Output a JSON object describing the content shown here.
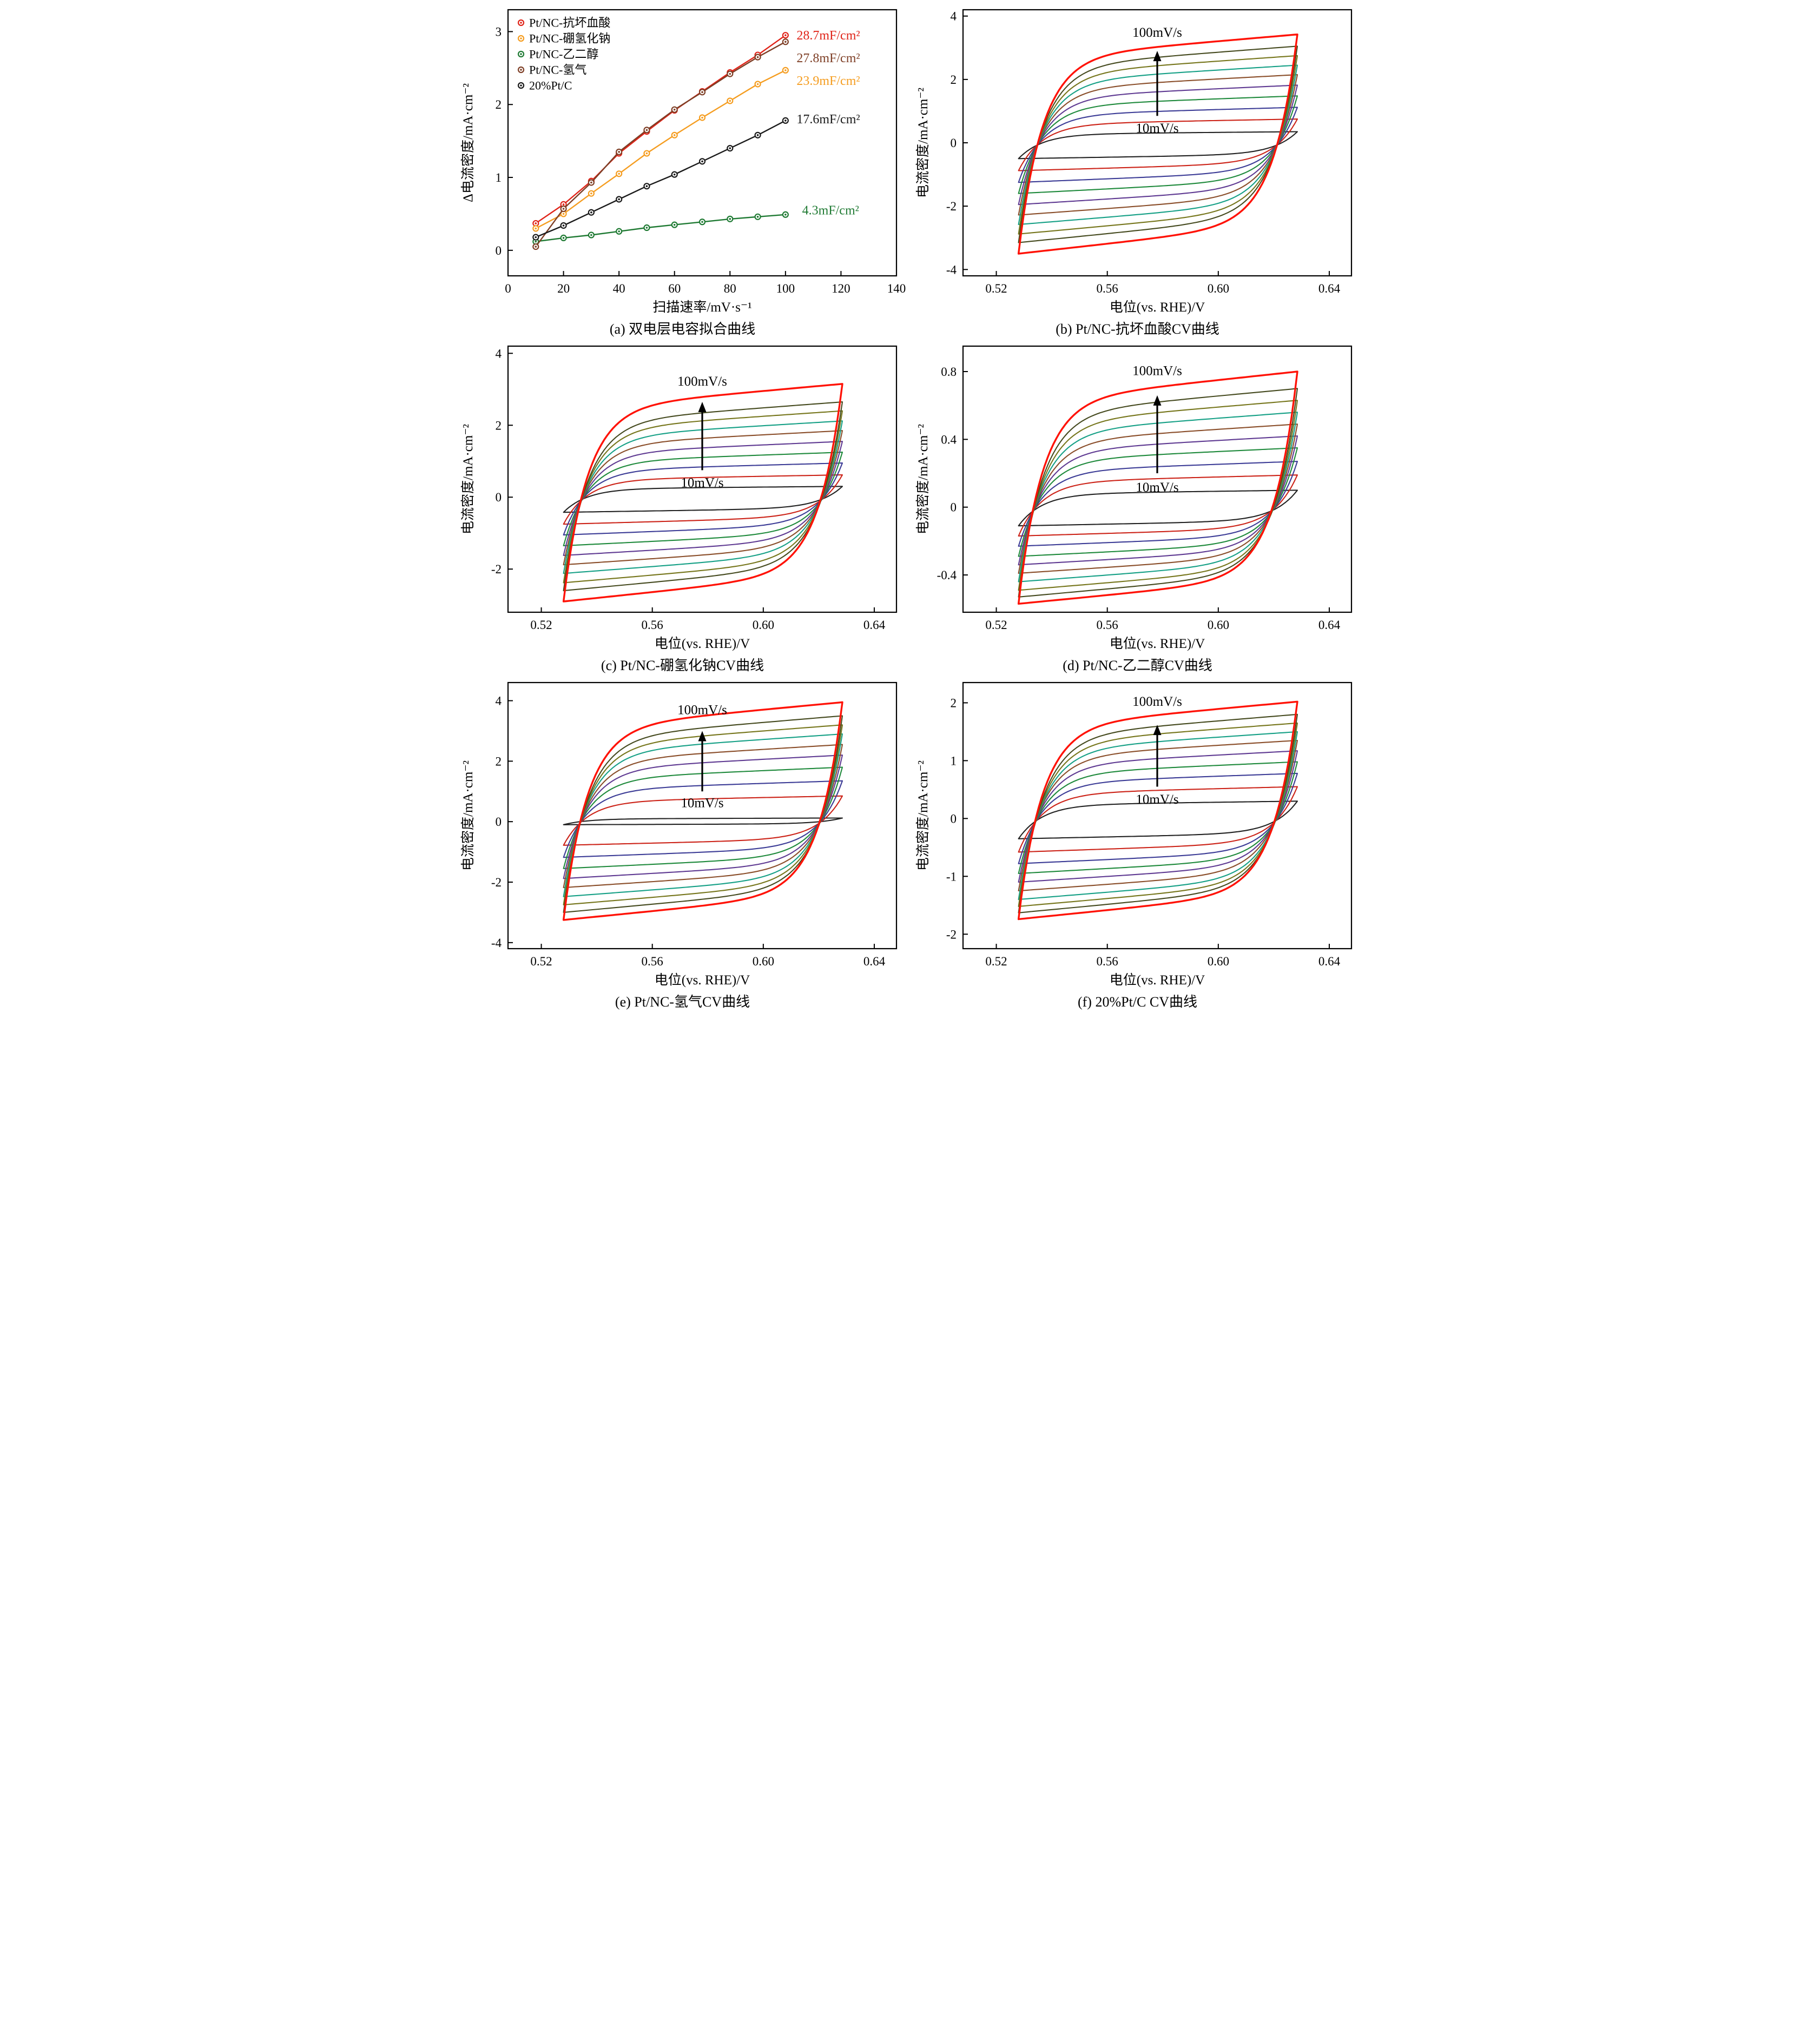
{
  "figure": {
    "background": "#ffffff"
  },
  "cv_colors": [
    "#222222",
    "#cc2318",
    "#3c3c96",
    "#1f8a3c",
    "#5f3a92",
    "#8a4e2a",
    "#16a086",
    "#76761c",
    "#454a1f",
    "#ff1206"
  ],
  "chart_data": [
    {
      "id": "a",
      "type": "scatter-line",
      "title": "(a) 双电层电容拟合曲线",
      "xlabel": "扫描速率/mV·s⁻¹",
      "ylabel": "Δ电流密度/mA·cm⁻²",
      "xlim": [
        0,
        140
      ],
      "ylim": [
        -0.35,
        3.3
      ],
      "xticks": [
        0,
        20,
        40,
        60,
        80,
        100,
        120,
        140
      ],
      "xtick_labels": [
        "0",
        "20",
        "40",
        "60",
        "80",
        "100",
        "120",
        "140"
      ],
      "yticks": [
        0,
        1,
        2,
        3
      ],
      "ytick_labels": [
        "0",
        "1",
        "2",
        "3"
      ],
      "x": [
        10,
        20,
        30,
        40,
        50,
        60,
        70,
        80,
        90,
        100
      ],
      "series": [
        {
          "name": "Pt/NC-抗坏血酸",
          "color": "#e02318",
          "values": [
            0.37,
            0.63,
            0.95,
            1.33,
            1.63,
            1.92,
            2.18,
            2.44,
            2.68,
            2.95
          ],
          "annotation": {
            "text": "28.7mF/cm²",
            "x": 104,
            "y": 2.95
          }
        },
        {
          "name": "Pt/NC-硼氢化钠",
          "color": "#f59d20",
          "values": [
            0.3,
            0.5,
            0.78,
            1.05,
            1.33,
            1.58,
            1.82,
            2.05,
            2.28,
            2.47
          ],
          "annotation": {
            "text": "23.9mF/cm²",
            "x": 104,
            "y": 2.33
          }
        },
        {
          "name": "Pt/NC-乙二醇",
          "color": "#1f7a33",
          "values": [
            0.12,
            0.17,
            0.21,
            0.26,
            0.31,
            0.35,
            0.39,
            0.43,
            0.46,
            0.49
          ],
          "annotation": {
            "text": "4.3mF/cm²",
            "x": 106,
            "y": 0.55
          }
        },
        {
          "name": "Pt/NC-氢气",
          "color": "#7e3f26",
          "values": [
            0.05,
            0.57,
            0.93,
            1.35,
            1.65,
            1.93,
            2.17,
            2.42,
            2.65,
            2.86
          ],
          "annotation": {
            "text": "27.8mF/cm²",
            "x": 104,
            "y": 2.64
          }
        },
        {
          "name": "20%Pt/C",
          "color": "#1a1a1a",
          "values": [
            0.18,
            0.34,
            0.52,
            0.7,
            0.88,
            1.04,
            1.22,
            1.4,
            1.58,
            1.78
          ],
          "annotation": {
            "text": "17.6mF/cm²",
            "x": 104,
            "y": 1.8
          }
        }
      ]
    },
    {
      "id": "b",
      "type": "cv",
      "title": "(b) Pt/NC-抗坏血酸CV曲线",
      "xlabel": "电位(vs. RHE)/V",
      "ylabel": "电流密度/mA·cm⁻²",
      "xlim": [
        0.508,
        0.648
      ],
      "ylim": [
        -4.2,
        4.2
      ],
      "xticks": [
        0.52,
        0.56,
        0.6,
        0.64
      ],
      "xtick_labels": [
        "0.52",
        "0.56",
        "0.60",
        "0.64"
      ],
      "yticks": [
        -4,
        -2,
        0,
        2,
        4
      ],
      "ytick_labels": [
        "-4",
        "-2",
        "0",
        "2",
        "4"
      ],
      "x_start": 0.528,
      "x_end": 0.6285,
      "scan_rates": [
        10,
        20,
        30,
        40,
        50,
        60,
        70,
        80,
        90,
        100
      ],
      "top_amplitudes": [
        0.35,
        0.75,
        1.12,
        1.48,
        1.82,
        2.15,
        2.45,
        2.75,
        3.05,
        3.42
      ],
      "bottom_amplitudes": [
        0.5,
        0.88,
        1.25,
        1.6,
        1.95,
        2.28,
        2.58,
        2.88,
        3.15,
        3.5
      ],
      "arrow": {
        "x": 0.578,
        "y1": 0.85,
        "y2": 2.9,
        "label_top": "100mV/s",
        "label_top_y": 3.35,
        "label_bottom": "10mV/s",
        "label_bottom_y": 0.48
      }
    },
    {
      "id": "c",
      "type": "cv",
      "title": "(c) Pt/NC-硼氢化钠CV曲线",
      "xlabel": "电位(vs. RHE)/V",
      "ylabel": "电流密度/mA·cm⁻²",
      "xlim": [
        0.508,
        0.648
      ],
      "ylim": [
        -3.2,
        4.2
      ],
      "xticks": [
        0.52,
        0.56,
        0.6,
        0.64
      ],
      "xtick_labels": [
        "0.52",
        "0.56",
        "0.60",
        "0.64"
      ],
      "yticks": [
        -2,
        0,
        2,
        4
      ],
      "ytick_labels": [
        "-2",
        "0",
        "2",
        "4"
      ],
      "x_start": 0.528,
      "x_end": 0.6285,
      "scan_rates": [
        10,
        20,
        30,
        40,
        50,
        60,
        70,
        80,
        90,
        100
      ],
      "top_amplitudes": [
        0.3,
        0.62,
        0.95,
        1.25,
        1.55,
        1.85,
        2.12,
        2.4,
        2.65,
        3.15
      ],
      "bottom_amplitudes": [
        0.42,
        0.75,
        1.05,
        1.35,
        1.62,
        1.88,
        2.12,
        2.38,
        2.6,
        2.9
      ],
      "arrow": {
        "x": 0.578,
        "y1": 0.75,
        "y2": 2.65,
        "label_top": "100mV/s",
        "label_top_y": 3.1,
        "label_bottom": "10mV/s",
        "label_bottom_y": 0.42
      }
    },
    {
      "id": "d",
      "type": "cv",
      "title": "(d) Pt/NC-乙二醇CV曲线",
      "xlabel": "电位(vs. RHE)/V",
      "ylabel": "电流密度/mA·cm⁻²",
      "xlim": [
        0.508,
        0.648
      ],
      "ylim": [
        -0.62,
        0.95
      ],
      "xticks": [
        0.52,
        0.56,
        0.6,
        0.64
      ],
      "xtick_labels": [
        "0.52",
        "0.56",
        "0.60",
        "0.64"
      ],
      "yticks": [
        -0.4,
        0,
        0.4,
        0.8
      ],
      "ytick_labels": [
        "-0.4",
        "0",
        "0.4",
        "0.8"
      ],
      "x_start": 0.528,
      "x_end": 0.6285,
      "scan_rates": [
        10,
        20,
        30,
        40,
        50,
        60,
        70,
        80,
        90,
        100
      ],
      "top_amplitudes": [
        0.1,
        0.19,
        0.27,
        0.35,
        0.42,
        0.49,
        0.56,
        0.63,
        0.7,
        0.8
      ],
      "bottom_amplitudes": [
        0.11,
        0.17,
        0.23,
        0.29,
        0.34,
        0.39,
        0.44,
        0.49,
        0.53,
        0.57
      ],
      "arrow": {
        "x": 0.578,
        "y1": 0.2,
        "y2": 0.66,
        "label_top": "100mV/s",
        "label_top_y": 0.78,
        "label_bottom": "10mV/s",
        "label_bottom_y": 0.12
      }
    },
    {
      "id": "e",
      "type": "cv",
      "title": "(e) Pt/NC-氢气CV曲线",
      "xlabel": "电位(vs. RHE)/V",
      "ylabel": "电流密度/mA·cm⁻²",
      "xlim": [
        0.508,
        0.648
      ],
      "ylim": [
        -4.2,
        4.6
      ],
      "xticks": [
        0.52,
        0.56,
        0.6,
        0.64
      ],
      "xtick_labels": [
        "0.52",
        "0.56",
        "0.60",
        "0.64"
      ],
      "yticks": [
        -4,
        -2,
        0,
        2,
        4
      ],
      "ytick_labels": [
        "-4",
        "-2",
        "0",
        "2",
        "4"
      ],
      "x_start": 0.528,
      "x_end": 0.6285,
      "scan_rates": [
        10,
        20,
        30,
        40,
        50,
        60,
        70,
        80,
        90,
        100
      ],
      "top_amplitudes": [
        0.12,
        0.85,
        1.35,
        1.8,
        2.2,
        2.55,
        2.9,
        3.2,
        3.5,
        3.95
      ],
      "bottom_amplitudes": [
        0.1,
        0.78,
        1.18,
        1.55,
        1.88,
        2.18,
        2.48,
        2.75,
        3.0,
        3.25
      ],
      "arrow": {
        "x": 0.578,
        "y1": 1.0,
        "y2": 3.0,
        "label_top": "100mV/s",
        "label_top_y": 3.55,
        "label_bottom": "10mV/s",
        "label_bottom_y": 0.64
      }
    },
    {
      "id": "f",
      "type": "cv",
      "title": "(f) 20%Pt/C CV曲线",
      "xlabel": "电位(vs. RHE)/V",
      "ylabel": "电流密度/mA·cm⁻²",
      "xlim": [
        0.508,
        0.648
      ],
      "ylim": [
        -2.25,
        2.35
      ],
      "xticks": [
        0.52,
        0.56,
        0.6,
        0.64
      ],
      "xtick_labels": [
        "0.52",
        "0.56",
        "0.60",
        "0.64"
      ],
      "yticks": [
        -2,
        -1,
        0,
        1,
        2
      ],
      "ytick_labels": [
        "-2",
        "-1",
        "0",
        "1",
        "2"
      ],
      "x_start": 0.528,
      "x_end": 0.6285,
      "scan_rates": [
        10,
        20,
        30,
        40,
        50,
        60,
        70,
        80,
        90,
        100
      ],
      "top_amplitudes": [
        0.3,
        0.55,
        0.78,
        0.98,
        1.17,
        1.35,
        1.5,
        1.65,
        1.8,
        2.02
      ],
      "bottom_amplitudes": [
        0.35,
        0.58,
        0.78,
        0.95,
        1.1,
        1.25,
        1.4,
        1.52,
        1.63,
        1.74
      ],
      "arrow": {
        "x": 0.578,
        "y1": 0.55,
        "y2": 1.62,
        "label_top": "100mV/s",
        "label_top_y": 1.95,
        "label_bottom": "10mV/s",
        "label_bottom_y": 0.34
      }
    }
  ]
}
